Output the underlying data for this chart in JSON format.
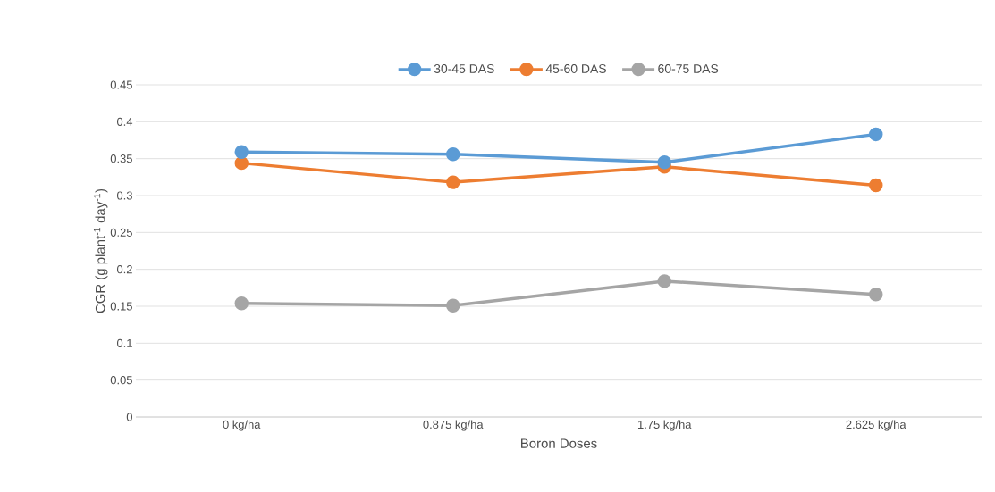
{
  "chart_data": {
    "type": "line",
    "xlabel": "Boron Doses",
    "ylabel": "CGR (g plant$^{-1}$ day$^{-1}$)",
    "categories": [
      "0 kg/ha",
      "0.875 kg/ha",
      "1.75 kg/ha",
      "2.625 kg/ha"
    ],
    "series": [
      {
        "name": "30-45 DAS",
        "color": "#5b9bd5",
        "values": [
          0.359,
          0.356,
          0.345,
          0.383
        ]
      },
      {
        "name": "45-60 DAS",
        "color": "#ed7d31",
        "values": [
          0.344,
          0.318,
          0.339,
          0.314
        ]
      },
      {
        "name": "60-75 DAS",
        "color": "#a5a5a5",
        "values": [
          0.154,
          0.151,
          0.184,
          0.166
        ]
      }
    ],
    "ylim": [
      0,
      0.45
    ],
    "yticks": [
      0,
      0.05,
      0.1,
      0.15,
      0.2,
      0.25,
      0.3,
      0.35,
      0.4,
      0.45
    ],
    "grid": "y",
    "legend": "top",
    "marker": "circle",
    "line_style": "solid"
  }
}
